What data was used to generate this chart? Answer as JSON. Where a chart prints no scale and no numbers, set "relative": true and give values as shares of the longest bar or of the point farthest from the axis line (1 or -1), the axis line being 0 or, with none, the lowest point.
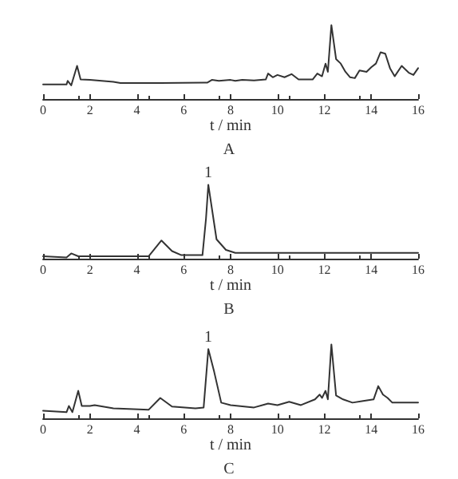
{
  "chart_data": [
    {
      "type": "line",
      "title": "A",
      "xlabel": "t / min",
      "relative": true,
      "xlim": [
        0,
        16
      ],
      "xticks": [
        0,
        2,
        4,
        6,
        8,
        10,
        12,
        14,
        16
      ],
      "grid": false,
      "marker": "none",
      "line_style": "solid",
      "series": [
        {
          "color": "#333333",
          "x": [
            0,
            1.0,
            1.05,
            1.2,
            1.45,
            1.6,
            2,
            3,
            3.3,
            5,
            7,
            7.2,
            7.5,
            8,
            8.2,
            8.5,
            9,
            9.5,
            9.6,
            9.8,
            10,
            10.3,
            10.6,
            10.9,
            11.5,
            11.7,
            11.9,
            12.05,
            12.15,
            12.3,
            12.5,
            12.7,
            12.9,
            13.1,
            13.3,
            13.5,
            13.8,
            14,
            14.2,
            14.4,
            14.6,
            14.8,
            15,
            15.3,
            15.6,
            15.8,
            16
          ],
          "values": [
            0.196,
            0.196,
            0.245,
            0.184,
            0.448,
            0.264,
            0.258,
            0.233,
            0.215,
            0.215,
            0.221,
            0.258,
            0.245,
            0.258,
            0.245,
            0.258,
            0.252,
            0.264,
            0.344,
            0.294,
            0.325,
            0.294,
            0.337,
            0.264,
            0.264,
            0.344,
            0.307,
            0.479,
            0.368,
            1,
            0.54,
            0.479,
            0.368,
            0.294,
            0.282,
            0.387,
            0.368,
            0.429,
            0.479,
            0.632,
            0.613,
            0.417,
            0.307,
            0.448,
            0.356,
            0.325,
            0.417
          ]
        }
      ]
    },
    {
      "type": "line",
      "title": "B",
      "xlabel": "t / min",
      "relative": true,
      "xlim": [
        0,
        16
      ],
      "xticks": [
        0,
        2,
        4,
        6,
        8,
        10,
        12,
        14,
        16
      ],
      "grid": false,
      "marker": "none",
      "line_style": "solid",
      "annotations": [
        {
          "text": "1",
          "x": 7.05,
          "y": 1
        }
      ],
      "series": [
        {
          "color": "#333333",
          "x": [
            0,
            1.0,
            1.2,
            1.5,
            4.5,
            5.05,
            5.5,
            5.9,
            6.8,
            6.95,
            7.05,
            7.4,
            7.8,
            8.2,
            16
          ],
          "values": [
            0.032,
            0.016,
            0.071,
            0.032,
            0.032,
            0.246,
            0.103,
            0.048,
            0.048,
            0.54,
            1,
            0.262,
            0.119,
            0.079,
            0.079
          ]
        }
      ]
    },
    {
      "type": "line",
      "title": "C",
      "xlabel": "t / min",
      "relative": true,
      "xlim": [
        0,
        16
      ],
      "xticks": [
        0,
        2,
        4,
        6,
        8,
        10,
        12,
        14,
        16
      ],
      "grid": false,
      "marker": "none",
      "line_style": "solid",
      "annotations": [
        {
          "text": "1",
          "x": 7.05,
          "y": 0.936
        }
      ],
      "series": [
        {
          "color": "#333333",
          "x": [
            0,
            1.0,
            1.1,
            1.25,
            1.5,
            1.65,
            2.0,
            2.2,
            3,
            4.5,
            5.0,
            5.5,
            6.5,
            6.85,
            7.05,
            7.3,
            7.6,
            8,
            9,
            9.6,
            10,
            10.5,
            11,
            11.6,
            11.8,
            11.9,
            12.05,
            12.15,
            12.3,
            12.5,
            12.8,
            13.2,
            13.6,
            14.1,
            14.3,
            14.5,
            14.7,
            14.9,
            16
          ],
          "values": [
            0.103,
            0.083,
            0.167,
            0.083,
            0.372,
            0.167,
            0.167,
            0.179,
            0.135,
            0.115,
            0.276,
            0.16,
            0.135,
            0.147,
            0.936,
            0.628,
            0.212,
            0.179,
            0.147,
            0.199,
            0.179,
            0.224,
            0.179,
            0.256,
            0.321,
            0.276,
            0.372,
            0.256,
            1,
            0.308,
            0.256,
            0.212,
            0.231,
            0.256,
            0.436,
            0.321,
            0.276,
            0.212,
            0.212
          ]
        }
      ]
    }
  ]
}
